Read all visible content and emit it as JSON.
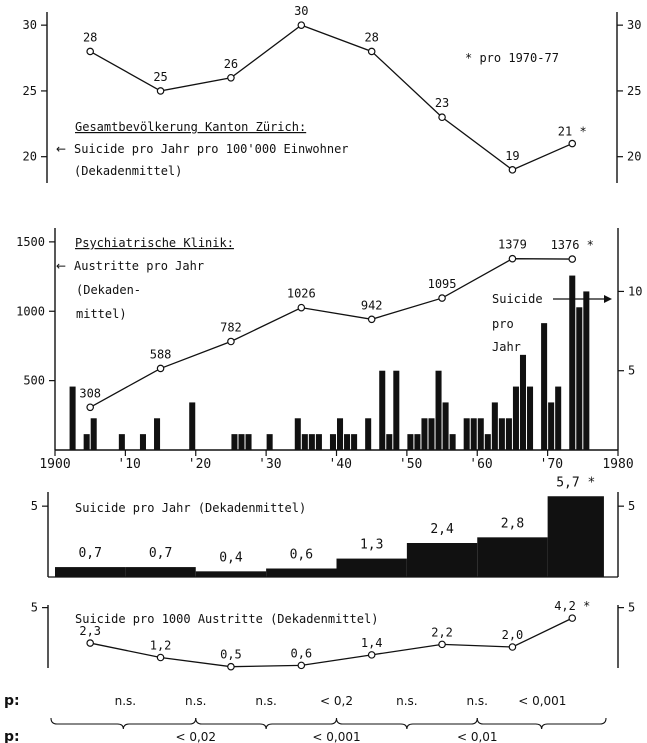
{
  "legend_note": "* pro 1970-77",
  "panels": {
    "population": {
      "title": "Gesamtbevölkerung Kanton Zürich:",
      "line1": "Suicide pro Jahr pro 100'000 Einwohner",
      "line2": "(Dekadenmittel)"
    },
    "clinic": {
      "title": "Psychiatrische Klinik:",
      "line1": "Austritte pro Jahr",
      "line2": "(Dekaden-",
      "line3": "mittel)",
      "suicide_label": [
        "Suicide",
        "pro",
        "Jahr"
      ]
    },
    "suicides_decade": {
      "title": "Suicide pro Jahr (Dekadenmittel)"
    },
    "per_1000": {
      "title": "Suicide pro 1000 Austritte (Dekadenmittel)"
    }
  },
  "p_row": {
    "label": "p:",
    "adjacent": [
      "n.s.",
      "n.s.",
      "n.s.",
      "< 0,2",
      "n.s.",
      "n.s.",
      "< 0,001"
    ],
    "pair_label": "p:",
    "pairs": [
      "< 0,02",
      "< 0,001",
      "< 0,01"
    ]
  },
  "chart_data": [
    {
      "type": "line",
      "x": [
        1905,
        1915,
        1925,
        1935,
        1945,
        1955,
        1965,
        1973.5
      ],
      "values": [
        28,
        25,
        26,
        30,
        28,
        23,
        19,
        21
      ],
      "labels": [
        "28",
        "25",
        "26",
        "30",
        "28",
        "23",
        "19",
        "21 *"
      ],
      "ylim": [
        18,
        31
      ],
      "yticks": [
        "20",
        "25",
        "30"
      ],
      "y_right_ticks": [
        "20",
        "25",
        "30"
      ]
    },
    {
      "type": "line",
      "x": [
        1905,
        1915,
        1925,
        1935,
        1945,
        1955,
        1965,
        1973.5
      ],
      "values": [
        308,
        588,
        782,
        1026,
        942,
        1095,
        1379,
        1376
      ],
      "labels": [
        "308",
        "588",
        "782",
        "1026",
        "942",
        "1095",
        "1379",
        "1376 *"
      ],
      "ylim": [
        0,
        1600
      ],
      "yticks": [
        "500",
        "1000",
        "1500"
      ],
      "xticks": [
        "1900",
        "'10",
        "'20",
        "'30",
        "'40",
        "'50",
        "'60",
        "'70",
        "1980"
      ],
      "bars": {
        "type": "bar",
        "y_right_ticks": [
          "5",
          "10"
        ],
        "ylim": [
          0,
          14
        ],
        "values": [
          [
            1902,
            4
          ],
          [
            1904,
            1
          ],
          [
            1905,
            2
          ],
          [
            1909,
            1
          ],
          [
            1912,
            1
          ],
          [
            1914,
            2
          ],
          [
            1919,
            3
          ],
          [
            1925,
            1
          ],
          [
            1926,
            1
          ],
          [
            1927,
            1
          ],
          [
            1930,
            1
          ],
          [
            1934,
            2
          ],
          [
            1935,
            1
          ],
          [
            1936,
            1
          ],
          [
            1937,
            1
          ],
          [
            1939,
            1
          ],
          [
            1940,
            2
          ],
          [
            1941,
            1
          ],
          [
            1942,
            1
          ],
          [
            1944,
            2
          ],
          [
            1946,
            5
          ],
          [
            1947,
            1
          ],
          [
            1948,
            5
          ],
          [
            1950,
            1
          ],
          [
            1951,
            1
          ],
          [
            1952,
            2
          ],
          [
            1953,
            2
          ],
          [
            1954,
            5
          ],
          [
            1955,
            3
          ],
          [
            1956,
            1
          ],
          [
            1958,
            2
          ],
          [
            1959,
            2
          ],
          [
            1960,
            2
          ],
          [
            1961,
            1
          ],
          [
            1962,
            3
          ],
          [
            1963,
            2
          ],
          [
            1964,
            2
          ],
          [
            1965,
            4
          ],
          [
            1966,
            6
          ],
          [
            1967,
            4
          ],
          [
            1969,
            8
          ],
          [
            1970,
            3
          ],
          [
            1971,
            4
          ],
          [
            1973,
            11
          ],
          [
            1974,
            9
          ],
          [
            1975,
            10
          ]
        ]
      }
    },
    {
      "type": "bar",
      "categories": [
        "1900-09",
        "1910-19",
        "1920-29",
        "1930-39",
        "1940-49",
        "1950-59",
        "1960-69",
        "1970-77"
      ],
      "values": [
        0.7,
        0.7,
        0.4,
        0.6,
        1.3,
        2.4,
        2.8,
        5.7
      ],
      "labels": [
        "0,7",
        "0,7",
        "0,4",
        "0,6",
        "1,3",
        "2,4",
        "2,8",
        "5,7 *"
      ],
      "ylim": [
        0,
        6
      ],
      "yticks": [
        "5"
      ],
      "y_right_ticks": [
        "5"
      ]
    },
    {
      "type": "line",
      "x": [
        1905,
        1915,
        1925,
        1935,
        1945,
        1955,
        1965,
        1973.5
      ],
      "values": [
        2.3,
        1.2,
        0.5,
        0.6,
        1.4,
        2.2,
        2.0,
        4.2
      ],
      "labels": [
        "2,3",
        "1,2",
        "0,5",
        "0,6",
        "1,4",
        "2,2",
        "2,0",
        "4,2 *"
      ],
      "ylim": [
        0.4,
        5.2
      ],
      "yticks": [
        "5"
      ],
      "y_right_ticks": [
        "5"
      ]
    }
  ]
}
